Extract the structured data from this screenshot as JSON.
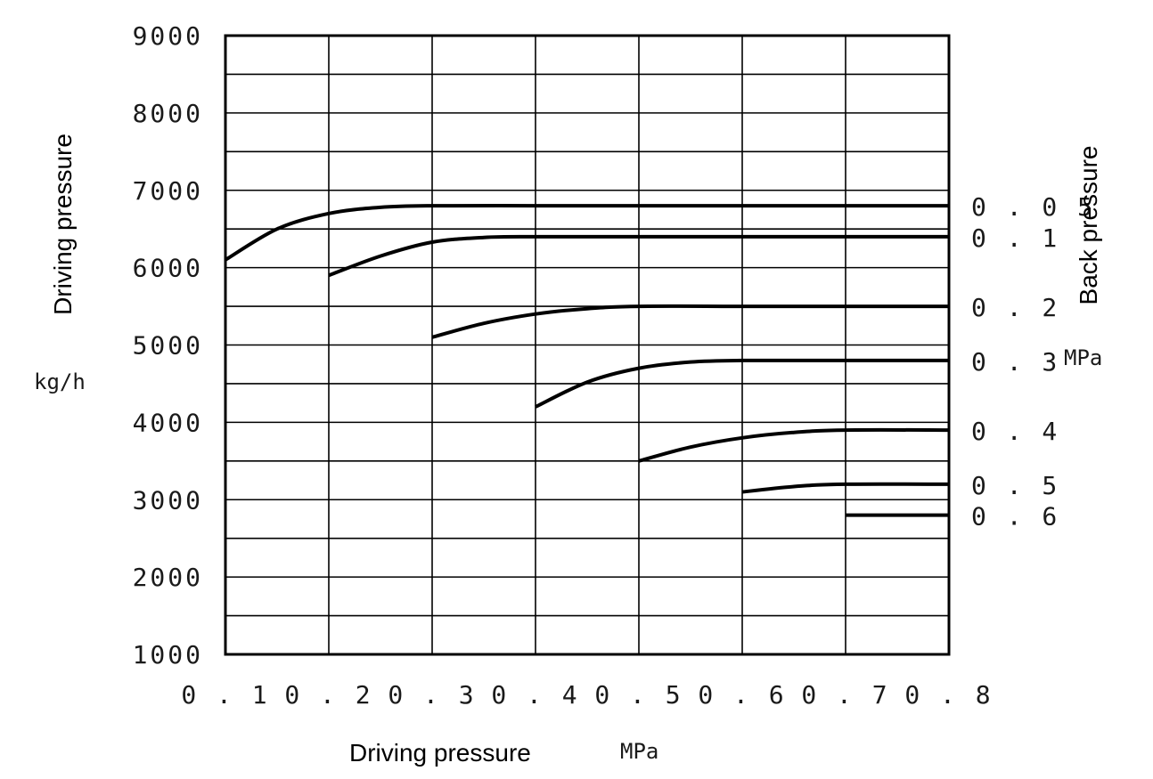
{
  "chart_data": {
    "type": "line",
    "xlabel": "Driving pressure",
    "x_unit": "MPa",
    "ylabel": "Driving pressure",
    "y_unit": "kg/h",
    "right_label": "Back pressure",
    "right_unit": "MPa",
    "xlim": [
      0.1,
      0.8
    ],
    "ylim": [
      1000,
      9000
    ],
    "x_ticks": [
      "0.1",
      "0.2",
      "0.3",
      "0.4",
      "0.5",
      "0.6",
      "0.7",
      "0.8"
    ],
    "y_ticks": [
      "1000",
      "2000",
      "3000",
      "4000",
      "5000",
      "6000",
      "7000",
      "8000",
      "9000"
    ],
    "grid": true,
    "series": [
      {
        "name": "0.05",
        "x": [
          0.1,
          0.15,
          0.2,
          0.25,
          0.3,
          0.4,
          0.5,
          0.6,
          0.7,
          0.8
        ],
        "y": [
          6100,
          6500,
          6700,
          6780,
          6800,
          6800,
          6800,
          6800,
          6800,
          6800
        ]
      },
      {
        "name": "0.1",
        "x": [
          0.2,
          0.25,
          0.3,
          0.35,
          0.4,
          0.5,
          0.6,
          0.7,
          0.8
        ],
        "y": [
          5900,
          6150,
          6330,
          6390,
          6400,
          6400,
          6400,
          6400,
          6400
        ]
      },
      {
        "name": "0.2",
        "x": [
          0.3,
          0.35,
          0.4,
          0.45,
          0.5,
          0.6,
          0.7,
          0.8
        ],
        "y": [
          5100,
          5280,
          5400,
          5470,
          5500,
          5500,
          5500,
          5500
        ]
      },
      {
        "name": "0.3",
        "x": [
          0.4,
          0.45,
          0.5,
          0.55,
          0.6,
          0.7,
          0.8
        ],
        "y": [
          4200,
          4520,
          4700,
          4780,
          4800,
          4800,
          4800
        ]
      },
      {
        "name": "0.4",
        "x": [
          0.5,
          0.55,
          0.6,
          0.65,
          0.7,
          0.8
        ],
        "y": [
          3500,
          3680,
          3800,
          3870,
          3900,
          3900
        ]
      },
      {
        "name": "0.5",
        "x": [
          0.6,
          0.65,
          0.7,
          0.8
        ],
        "y": [
          3100,
          3170,
          3200,
          3200
        ]
      },
      {
        "name": "0.6",
        "x": [
          0.7,
          0.8
        ],
        "y": [
          2800,
          2800
        ]
      }
    ]
  }
}
